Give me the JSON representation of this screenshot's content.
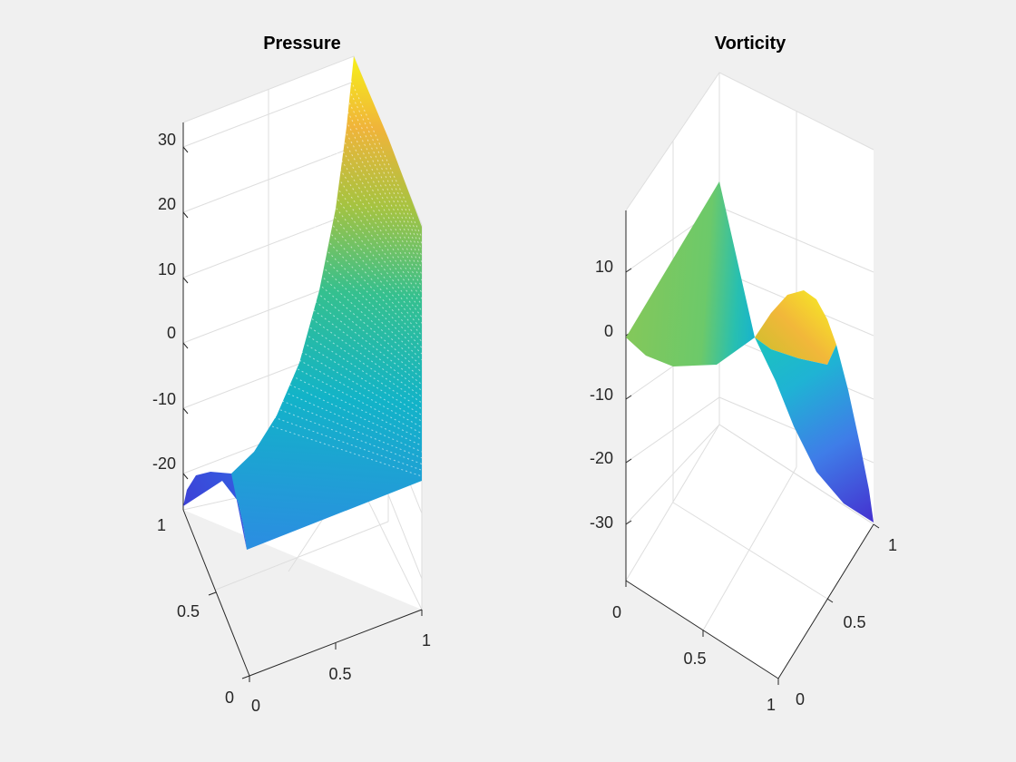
{
  "figure": {
    "background": "#f0f0f0",
    "axes_background": "#ffffff",
    "colormap": "parula"
  },
  "chart_data": [
    {
      "type": "surface",
      "title": "Pressure",
      "xlabel": "",
      "ylabel": "",
      "zlabel": "",
      "xlim": [
        0,
        1
      ],
      "ylim": [
        0,
        1
      ],
      "zlim": [
        -25,
        33
      ],
      "x_ticks": [
        "0",
        "0.5",
        "1"
      ],
      "y_ticks": [
        "0",
        "0.5",
        "1"
      ],
      "z_ticks": [
        "30",
        "20",
        "10",
        "0",
        "-10",
        "-20"
      ],
      "grid": true,
      "surface_summary": {
        "peak": {
          "x": 1,
          "y": 1,
          "z": 33
        },
        "minimum": {
          "x": 0,
          "y": 1,
          "z": -25
        },
        "plateau_z": -24
      }
    },
    {
      "type": "surface",
      "title": "Vorticity",
      "xlabel": "",
      "ylabel": "",
      "zlabel": "",
      "xlim": [
        0,
        1
      ],
      "ylim": [
        0,
        1
      ],
      "zlim": [
        -39,
        19
      ],
      "x_ticks": [
        "0",
        "0.5",
        "1"
      ],
      "y_ticks": [
        "0",
        "0.5",
        "1"
      ],
      "z_ticks": [
        "10",
        "0",
        "-10",
        "-20",
        "-30"
      ],
      "grid": true,
      "surface_summary": {
        "corners": [
          {
            "x": 0,
            "y": 0,
            "z": 0
          },
          {
            "x": 0,
            "y": 1,
            "z": 14
          },
          {
            "x": 1,
            "y": 0,
            "z": -30
          },
          {
            "x": 1,
            "y": 1,
            "z": 0
          }
        ],
        "local_max_z": 10,
        "local_min_z": -3
      }
    }
  ]
}
